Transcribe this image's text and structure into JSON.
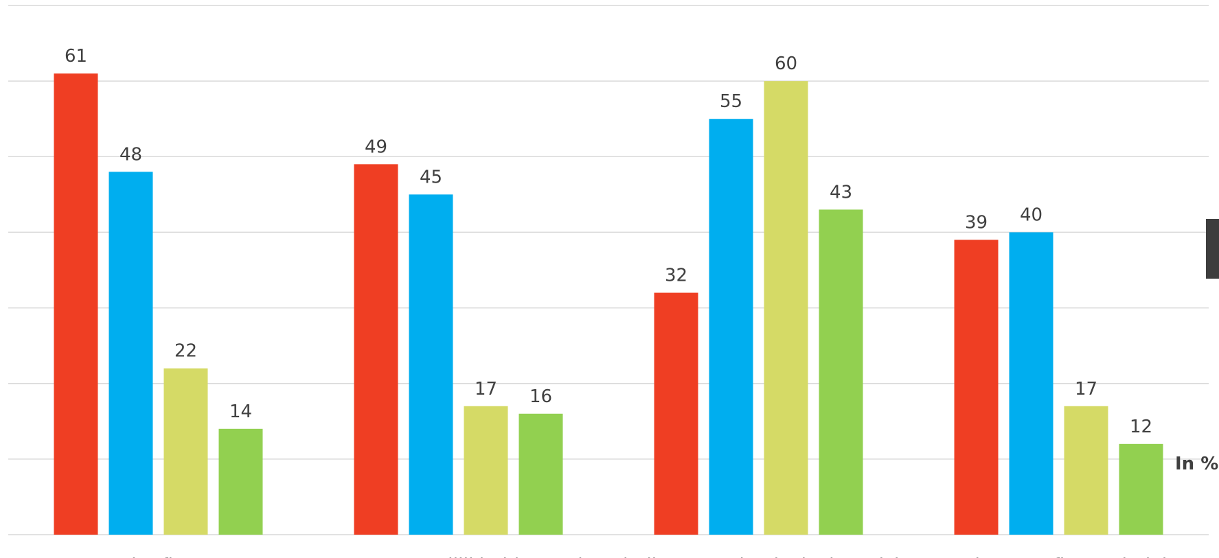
{
  "chart_data": {
    "type": "bar",
    "categories": [
      "Harder fietsen",
      "Hogere moeilijkheidsgraad",
      "Eindbestemming is doel op zich",
      "Verbeteren fietstechniek"
    ],
    "series": [
      {
        "values": [
          61,
          49,
          32,
          39
        ],
        "color": "#ef3e23"
      },
      {
        "values": [
          48,
          45,
          55,
          40
        ],
        "color": "#00aeef"
      },
      {
        "values": [
          22,
          17,
          60,
          17
        ],
        "color": "#d5da66"
      },
      {
        "values": [
          14,
          16,
          43,
          12
        ],
        "color": "#92d050"
      }
    ],
    "ylim": [
      0,
      70
    ],
    "grid": true,
    "unit_label": "In %"
  }
}
